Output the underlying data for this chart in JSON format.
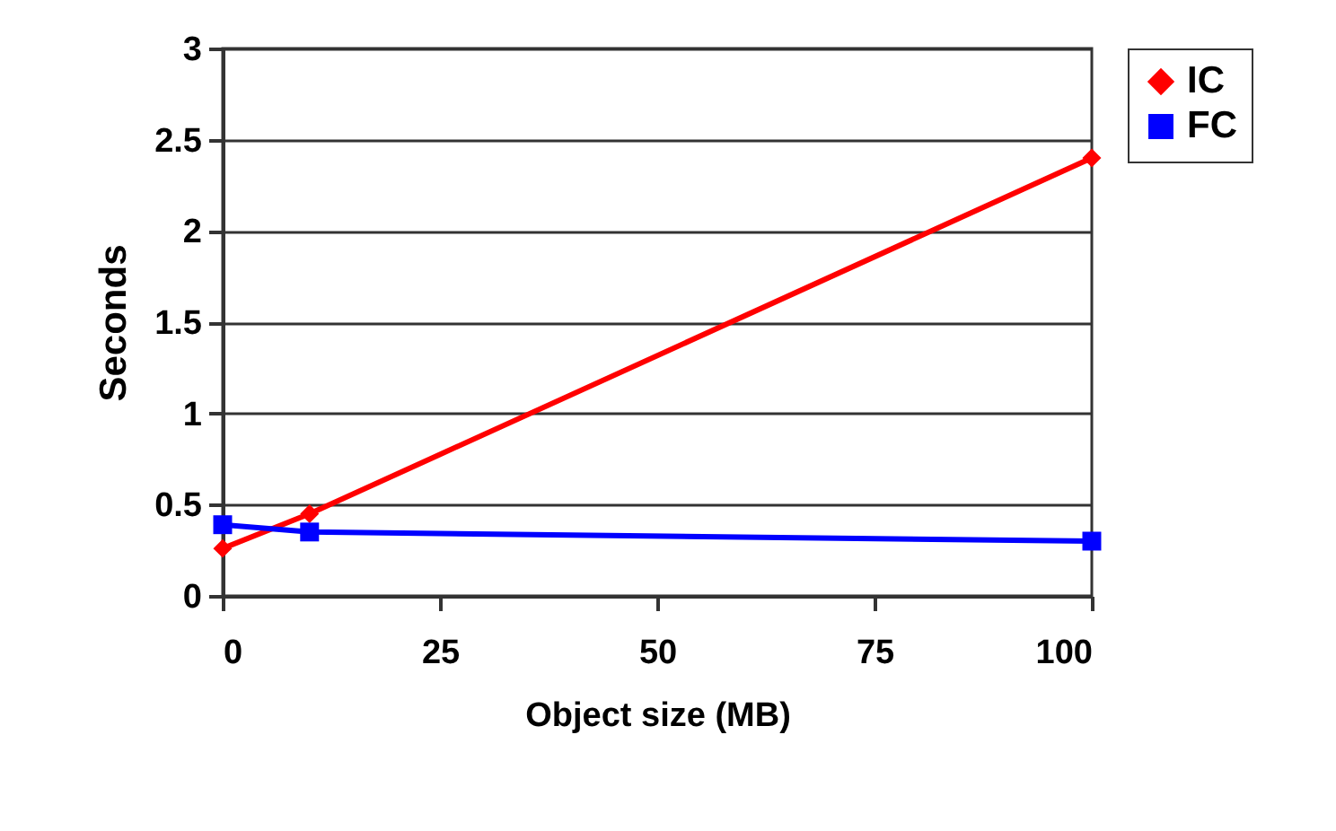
{
  "chart_data": {
    "type": "line",
    "xlabel": "Object size (MB)",
    "ylabel": "Seconds",
    "x": [
      0,
      10,
      100
    ],
    "series": [
      {
        "name": "IC",
        "color": "#ff0000",
        "values": [
          0.26,
          0.45,
          2.4
        ],
        "marker": "diamond"
      },
      {
        "name": "FC",
        "color": "#0000ff",
        "values": [
          0.39,
          0.35,
          0.3
        ],
        "marker": "square"
      }
    ],
    "xlim": [
      0,
      100
    ],
    "xticks": [
      0,
      25,
      50,
      75,
      100
    ],
    "ylim": [
      0,
      3
    ],
    "yticks": [
      0,
      0.5,
      1,
      1.5,
      2,
      2.5,
      3
    ],
    "grid": "y",
    "legend": "right",
    "line_style": "solid"
  }
}
